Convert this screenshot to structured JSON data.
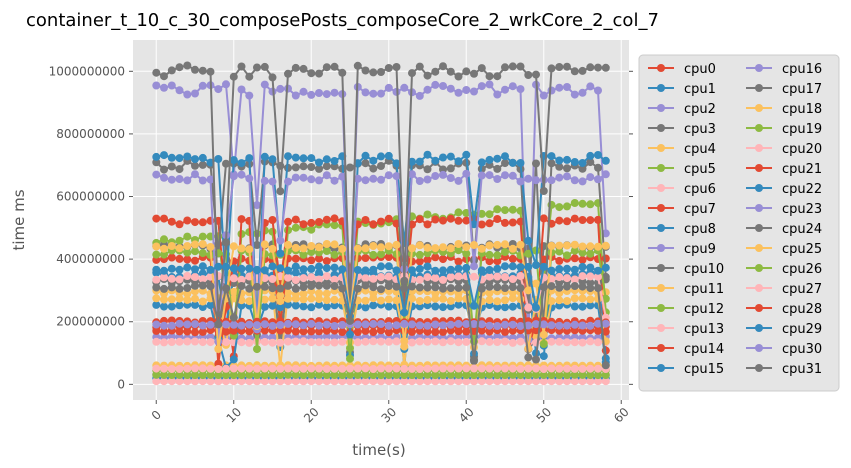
{
  "chart_data": {
    "type": "line",
    "title": "container_t_10_c_30_composePosts_composeCore_2_wrkCore_2_col_7",
    "xlabel": "time(s)",
    "ylabel": "time ms",
    "xlim": [
      -3,
      61
    ],
    "ylim": [
      -50000000,
      1100000000
    ],
    "x_ticks": [
      0,
      10,
      20,
      30,
      40,
      50,
      60
    ],
    "x_tick_labels": [
      "0",
      "10",
      "20",
      "30",
      "40",
      "50",
      "60"
    ],
    "y_ticks": [
      0,
      200000000,
      400000000,
      600000000,
      800000000,
      1000000000
    ],
    "y_tick_labels": [
      "0",
      "200000000",
      "400000000",
      "600000000",
      "800000000",
      "1000000000"
    ],
    "grid": true,
    "legend_position": "right",
    "legend_columns": 2,
    "x": [
      0,
      1,
      2,
      3,
      4,
      5,
      6,
      7,
      8,
      9,
      10,
      11,
      12,
      13,
      14,
      15,
      16,
      17,
      18,
      19,
      20,
      21,
      22,
      23,
      24,
      25,
      26,
      27,
      28,
      29,
      30,
      31,
      32,
      33,
      34,
      35,
      36,
      37,
      38,
      39,
      40,
      41,
      42,
      43,
      44,
      45,
      46,
      47,
      48,
      49,
      50,
      51,
      52,
      53,
      54,
      55,
      56,
      57,
      58
    ],
    "series": [
      {
        "name": "cpu0",
        "color": "#E24A33",
        "base": 185000000
      },
      {
        "name": "cpu1",
        "color": "#348ABD",
        "base": 20000000
      },
      {
        "name": "cpu2",
        "color": "#988ED5",
        "base": 150000000
      },
      {
        "name": "cpu3",
        "color": "#777777",
        "base": 440000000
      },
      {
        "name": "cpu4",
        "color": "#FBC15E",
        "base": 60000000
      },
      {
        "name": "cpu5",
        "color": "#8EBA42",
        "base": 455000000,
        "trend": 130000000
      },
      {
        "name": "cpu6",
        "color": "#FFB5B8",
        "base": 10000000
      },
      {
        "name": "cpu7",
        "color": "#E24A33",
        "base": 520000000
      },
      {
        "name": "cpu8",
        "color": "#348ABD",
        "base": 350000000
      },
      {
        "name": "cpu9",
        "color": "#988ED5",
        "base": 30000000
      },
      {
        "name": "cpu10",
        "color": "#777777",
        "base": 330000000
      },
      {
        "name": "cpu11",
        "color": "#FBC15E",
        "base": 295000000
      },
      {
        "name": "cpu12",
        "color": "#8EBA42",
        "base": 45000000
      },
      {
        "name": "cpu13",
        "color": "#FFB5B8",
        "base": 135000000
      },
      {
        "name": "cpu14",
        "color": "#E24A33",
        "base": 400000000
      },
      {
        "name": "cpu15",
        "color": "#348ABD",
        "base": 250000000
      },
      {
        "name": "cpu16",
        "color": "#988ED5",
        "base": 940000000
      },
      {
        "name": "cpu17",
        "color": "#777777",
        "base": 700000000
      },
      {
        "name": "cpu18",
        "color": "#FBC15E",
        "base": 270000000
      },
      {
        "name": "cpu19",
        "color": "#8EBA42",
        "base": 420000000
      },
      {
        "name": "cpu20",
        "color": "#FFB5B8",
        "base": 340000000
      },
      {
        "name": "cpu21",
        "color": "#E24A33",
        "base": 170000000
      },
      {
        "name": "cpu22",
        "color": "#348ABD",
        "base": 720000000
      },
      {
        "name": "cpu23",
        "color": "#988ED5",
        "base": 660000000
      },
      {
        "name": "cpu24",
        "color": "#777777",
        "base": 1000000000
      },
      {
        "name": "cpu25",
        "color": "#FBC15E",
        "base": 440000000
      },
      {
        "name": "cpu26",
        "color": "#8EBA42",
        "base": 30000000
      },
      {
        "name": "cpu27",
        "color": "#FFB5B8",
        "base": 50000000
      },
      {
        "name": "cpu28",
        "color": "#E24A33",
        "base": 200000000
      },
      {
        "name": "cpu29",
        "color": "#348ABD",
        "base": 370000000
      },
      {
        "name": "cpu30",
        "color": "#988ED5",
        "base": 190000000
      },
      {
        "name": "cpu31",
        "color": "#777777",
        "base": 310000000
      }
    ]
  }
}
